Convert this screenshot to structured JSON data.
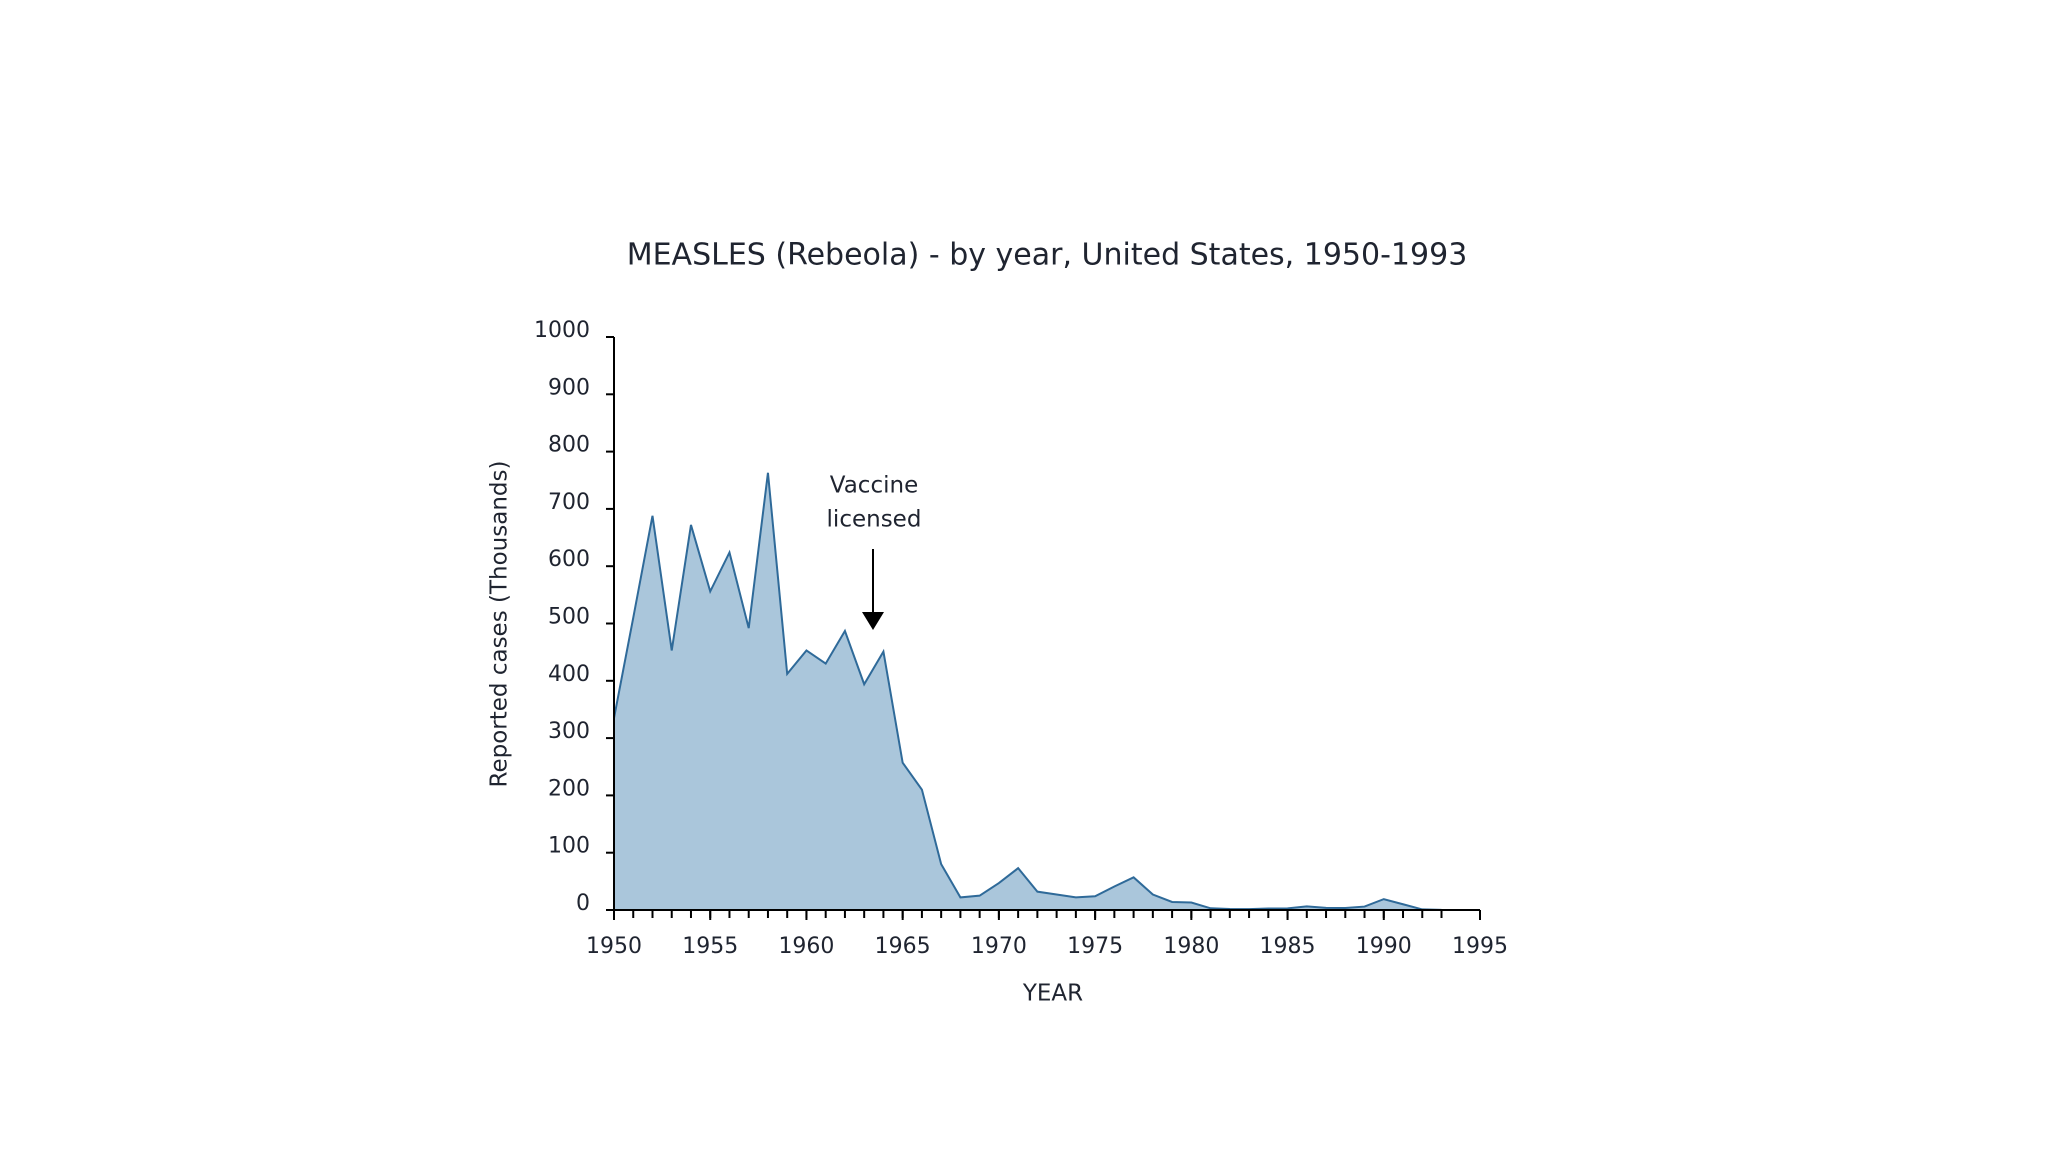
{
  "chart_data": {
    "type": "area",
    "title": "MEASLES (Rebeola) - by year, United States, 1950-1993",
    "xlabel": "YEAR",
    "ylabel": "Reported cases (Thousands)",
    "annotation": [
      "Vaccine",
      "licensed"
    ],
    "x": [
      1950,
      1951,
      1952,
      1953,
      1954,
      1955,
      1956,
      1957,
      1958,
      1959,
      1960,
      1961,
      1962,
      1963,
      1964,
      1965,
      1966,
      1967,
      1968,
      1969,
      1970,
      1971,
      1972,
      1973,
      1974,
      1975,
      1976,
      1977,
      1978,
      1979,
      1980,
      1981,
      1982,
      1983,
      1984,
      1985,
      1986,
      1987,
      1988,
      1989,
      1990,
      1991,
      1992,
      1993
    ],
    "values": [
      335,
      510,
      688,
      453,
      672,
      556,
      624,
      492,
      763,
      412,
      453,
      430,
      487,
      394,
      451,
      257,
      210,
      80,
      22,
      25,
      47,
      73,
      32,
      27,
      22,
      24,
      41,
      57,
      27,
      14,
      13,
      3,
      1.7,
      1.5,
      2.6,
      2.8,
      6.3,
      3.7,
      3.4,
      6,
      19,
      10,
      1,
      0.3
    ],
    "color": "#aac6db",
    "line_color": "#2f6a99",
    "xlim": [
      1950,
      1995
    ],
    "xticks": [
      1950,
      1955,
      1960,
      1965,
      1970,
      1975,
      1980,
      1985,
      1990,
      1995
    ],
    "ylim": [
      0,
      1000
    ],
    "yticks": [
      0,
      100,
      200,
      300,
      400,
      500,
      600,
      700,
      800,
      900,
      1000
    ]
  }
}
